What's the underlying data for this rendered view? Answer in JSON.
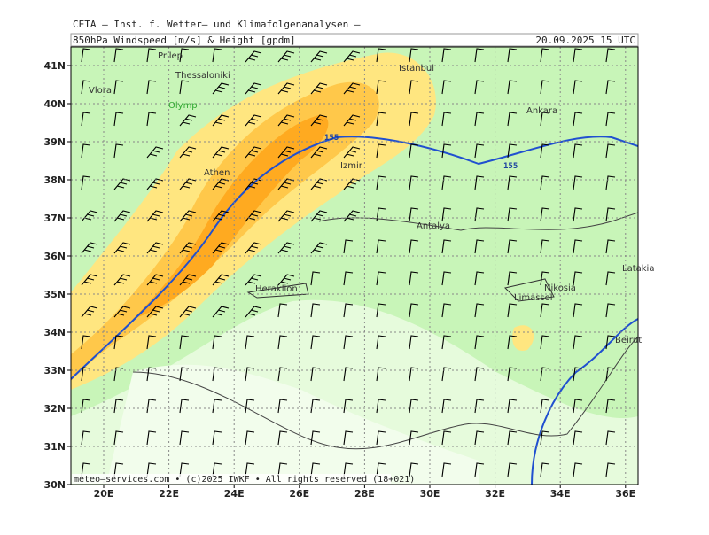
{
  "header": {
    "title": "CETA — Inst. f. Wetter— und Klimafolgenanalysen —",
    "subtitle": "850hPa Windspeed [m/s] & Height [gpdm]",
    "datetime": "20.09.2025 15 UTC"
  },
  "lat_labels": [
    "41N",
    "40N",
    "39N",
    "38N",
    "37N",
    "36N",
    "35N",
    "34N",
    "33N",
    "32N",
    "31N",
    "30N"
  ],
  "lon_labels": [
    "20E",
    "22E",
    "24E",
    "26E",
    "28E",
    "30E",
    "32E",
    "34E",
    "36E"
  ],
  "places": [
    "Prilep",
    "Thessaloniki",
    "Vlora",
    "Olymp",
    "Istanbul",
    "Ankara",
    "Athen",
    "Izmir",
    "Antalya",
    "Heraklion",
    "Nikosia",
    "Limassol",
    "Latakia",
    "Beirut"
  ],
  "contour_labels": [
    "155",
    "155"
  ],
  "footer": "meteo—services.com • (c)2025 IWKF • All rights reserved (18+021)"
}
